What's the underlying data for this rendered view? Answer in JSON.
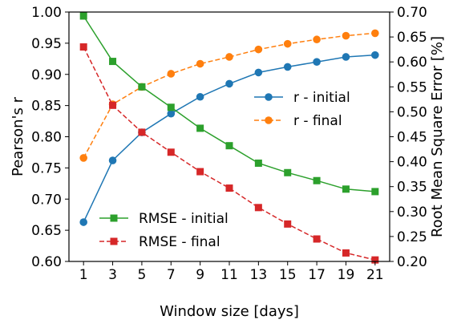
{
  "chart_data": {
    "type": "line",
    "x": [
      1,
      3,
      5,
      7,
      9,
      11,
      13,
      15,
      17,
      19,
      21
    ],
    "xlabel": "Window size [days]",
    "ylabel_left": "Pearson's r",
    "ylabel_right": "Root Mean Square Error [%]",
    "xlim": [
      0,
      22
    ],
    "ylim_left": [
      0.6,
      1.0
    ],
    "ylim_right": [
      0.2,
      0.7
    ],
    "xticks": [
      "1",
      "3",
      "5",
      "7",
      "9",
      "11",
      "13",
      "15",
      "17",
      "19",
      "21"
    ],
    "yticks_left": [
      "0.60",
      "0.65",
      "0.70",
      "0.75",
      "0.80",
      "0.85",
      "0.90",
      "0.95",
      "1.00"
    ],
    "yticks_right": [
      "0.20",
      "0.25",
      "0.30",
      "0.35",
      "0.40",
      "0.45",
      "0.50",
      "0.55",
      "0.60",
      "0.65",
      "0.70"
    ],
    "grid": false,
    "series": [
      {
        "name": "r - initial",
        "axis": "left",
        "color": "#1f77b4",
        "line_style": "solid",
        "marker": "circle",
        "values": [
          0.663,
          0.762,
          0.807,
          0.837,
          0.864,
          0.885,
          0.903,
          0.912,
          0.92,
          0.928,
          0.931
        ]
      },
      {
        "name": "r - final",
        "axis": "left",
        "color": "#ff7f0e",
        "line_style": "dashed",
        "marker": "circle",
        "values": [
          0.766,
          0.852,
          0.88,
          0.901,
          0.917,
          0.928,
          0.94,
          0.949,
          0.956,
          0.962,
          0.966
        ]
      },
      {
        "name": "RMSE - initial",
        "axis": "right",
        "color": "#2ca02c",
        "line_style": "solid",
        "marker": "square",
        "values": [
          0.692,
          0.601,
          0.55,
          0.509,
          0.467,
          0.432,
          0.397,
          0.378,
          0.362,
          0.345,
          0.34
        ]
      },
      {
        "name": "RMSE - final",
        "axis": "right",
        "color": "#d62728",
        "line_style": "dashed",
        "marker": "square",
        "values": [
          0.63,
          0.513,
          0.459,
          0.419,
          0.38,
          0.347,
          0.308,
          0.275,
          0.245,
          0.217,
          0.203
        ]
      }
    ],
    "legends": [
      {
        "placement": "center-right",
        "entries": [
          "r - initial",
          "r - final"
        ]
      },
      {
        "placement": "lower-left",
        "entries": [
          "RMSE - initial",
          "RMSE - final"
        ]
      }
    ]
  }
}
